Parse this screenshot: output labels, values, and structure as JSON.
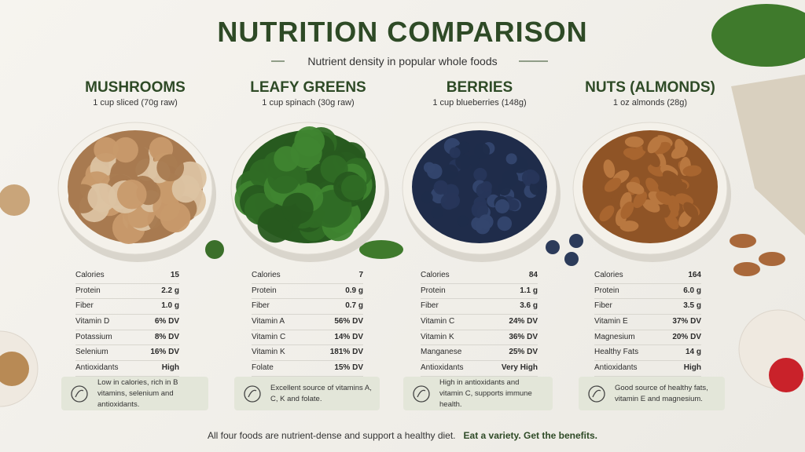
{
  "header": {
    "title": "NUTRITION COMPARISON",
    "subtitle": "Nutrient density in popular whole foods"
  },
  "foods": [
    {
      "name": "MUSHROOMS",
      "serving": "1 cup sliced (70g raw)",
      "rows": [
        [
          "Calories",
          "15"
        ],
        [
          "Protein",
          "2.2 g"
        ],
        [
          "Fiber",
          "1.0 g"
        ],
        [
          "Vitamin D",
          "6% DV"
        ],
        [
          "Potassium",
          "8% DV"
        ],
        [
          "Selenium",
          "16% DV"
        ],
        [
          "Antioxidants",
          "High"
        ]
      ],
      "note": "Low in calories, rich in B vitamins, selenium and antioxidants."
    },
    {
      "name": "LEAFY GREENS",
      "serving": "1 cup spinach (30g raw)",
      "rows": [
        [
          "Calories",
          "7"
        ],
        [
          "Protein",
          "0.9 g"
        ],
        [
          "Fiber",
          "0.7 g"
        ],
        [
          "Vitamin A",
          "56% DV"
        ],
        [
          "Vitamin C",
          "14% DV"
        ],
        [
          "Vitamin K",
          "181% DV"
        ],
        [
          "Folate",
          "15% DV"
        ]
      ],
      "note": "Excellent source of vitamins A, C, K and folate."
    },
    {
      "name": "BERRIES",
      "serving": "1 cup blueberries (148g)",
      "rows": [
        [
          "Calories",
          "84"
        ],
        [
          "Protein",
          "1.1 g"
        ],
        [
          "Fiber",
          "3.6 g"
        ],
        [
          "Vitamin C",
          "24% DV"
        ],
        [
          "Vitamin K",
          "36% DV"
        ],
        [
          "Manganese",
          "25% DV"
        ],
        [
          "Antioxidants",
          "Very High"
        ]
      ],
      "note": "High in antioxidants and vitamin C, supports immune health."
    },
    {
      "name": "NUTS (ALMONDS)",
      "serving": "1 oz almonds (28g)",
      "rows": [
        [
          "Calories",
          "164"
        ],
        [
          "Protein",
          "6.0 g"
        ],
        [
          "Fiber",
          "3.5 g"
        ],
        [
          "Vitamin E",
          "37% DV"
        ],
        [
          "Magnesium",
          "20% DV"
        ],
        [
          "Healthy Fats",
          "14 g"
        ],
        [
          "Antioxidants",
          "High"
        ]
      ],
      "note": "Good source of healthy fats, vitamin E and magnesium."
    }
  ],
  "footer": {
    "text": "All four foods are nutrient-dense and support a healthy diet.",
    "emphasis": "Eat a variety. Get the benefits."
  }
}
